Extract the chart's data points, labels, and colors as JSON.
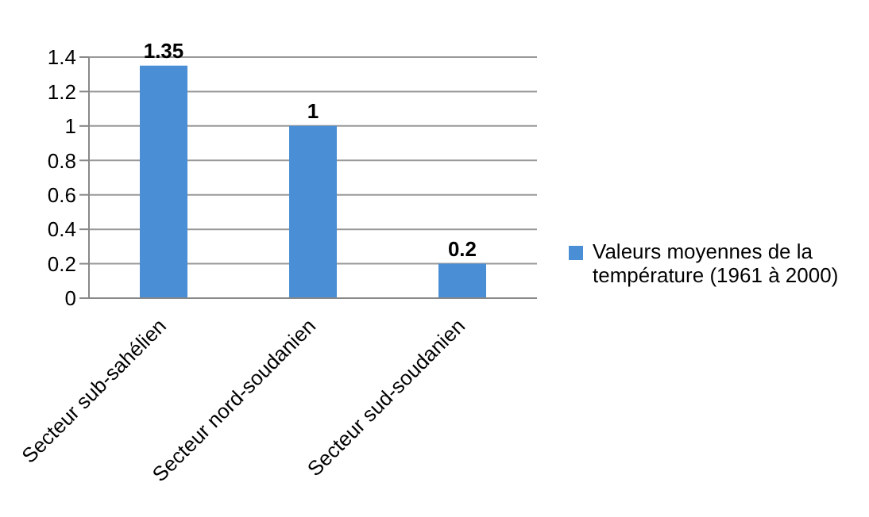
{
  "chart_data": {
    "type": "bar",
    "categories": [
      "Secteur sub-sahélien",
      "Secteur nord-soudanien",
      "Secteur sud-soudanien"
    ],
    "series": [
      {
        "name": "Valeurs moyennes de la température (1961 à 2000)",
        "color": "#4a8fd6",
        "values": [
          1.35,
          1,
          0.2
        ]
      }
    ],
    "ylim": [
      0,
      1.4
    ],
    "yticks": [
      0,
      0.2,
      0.4,
      0.6,
      0.8,
      1,
      1.2,
      1.4
    ],
    "grid": "y",
    "data_labels": true,
    "legend": "right"
  }
}
